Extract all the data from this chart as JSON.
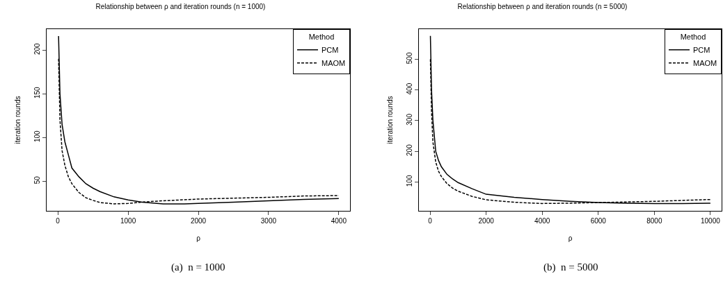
{
  "chart_data": [
    {
      "type": "line",
      "title": "Relationship between ρ and iteration rounds (n = 1000)",
      "xlabel": "ρ",
      "ylabel": "iteration rounds",
      "legend_title": "Method",
      "legend": "top right",
      "grid": false,
      "marker": "none",
      "xlim": [
        -160,
        4160
      ],
      "ylim": [
        16,
        224
      ],
      "xticks": [
        0,
        1000,
        2000,
        3000,
        4000
      ],
      "yticks": [
        50,
        100,
        150,
        200
      ],
      "annotations": [
        "(a)  n = 1000"
      ],
      "series": [
        {
          "name": "PCM",
          "color": "#000000",
          "line_style": "solid",
          "x": [
            10,
            30,
            60,
            100,
            150,
            200,
            300,
            400,
            500,
            600,
            800,
            1000,
            1200,
            1500,
            1800,
            2000,
            2500,
            3000,
            3500,
            4000
          ],
          "values": [
            216,
            150,
            115,
            95,
            80,
            65,
            55,
            47,
            42,
            38,
            32,
            28.5,
            26,
            24,
            24,
            24.5,
            26,
            27.5,
            29,
            30
          ]
        },
        {
          "name": "MAOM",
          "color": "#000000",
          "line_style": "dashed",
          "x": [
            10,
            30,
            60,
            100,
            150,
            200,
            300,
            400,
            500,
            600,
            800,
            1000,
            1200,
            1500,
            2000,
            2500,
            3000,
            3500,
            4000
          ],
          "values": [
            190,
            120,
            85,
            68,
            55,
            47,
            37,
            31,
            28,
            25.5,
            24,
            24.5,
            26,
            27.5,
            29.5,
            30.5,
            31.5,
            33,
            33.5
          ]
        }
      ]
    },
    {
      "type": "line",
      "title": "Relationship between ρ and iteration rounds (n = 5000)",
      "xlabel": "ρ",
      "ylabel": "iteration rounds",
      "legend_title": "Method",
      "legend": "top right",
      "grid": false,
      "marker": "none",
      "xlim": [
        -400,
        10400
      ],
      "ylim": [
        6,
        598
      ],
      "xticks": [
        0,
        2000,
        4000,
        6000,
        8000,
        10000
      ],
      "yticks": [
        100,
        200,
        300,
        400,
        500
      ],
      "annotations": [
        "(b)  n = 5000"
      ],
      "series": [
        {
          "name": "PCM",
          "color": "#000000",
          "line_style": "solid",
          "x": [
            10,
            50,
            100,
            200,
            300,
            400,
            600,
            800,
            1000,
            1500,
            2000,
            3000,
            4000,
            5000,
            6000,
            7000,
            8000,
            9000,
            10000
          ],
          "values": [
            576,
            400,
            300,
            200,
            170,
            150,
            125,
            110,
            98,
            78,
            60,
            50,
            43,
            37,
            33,
            31,
            30,
            30,
            31
          ]
        },
        {
          "name": "MAOM",
          "color": "#000000",
          "line_style": "dashed",
          "x": [
            10,
            50,
            100,
            200,
            300,
            400,
            600,
            800,
            1000,
            1500,
            2000,
            3000,
            4000,
            5000,
            6000,
            7000,
            8000,
            9000,
            10000
          ],
          "values": [
            500,
            330,
            230,
            165,
            135,
            118,
            95,
            80,
            70,
            53,
            42,
            34,
            30,
            31,
            33,
            35,
            37,
            40,
            43
          ]
        }
      ]
    }
  ]
}
